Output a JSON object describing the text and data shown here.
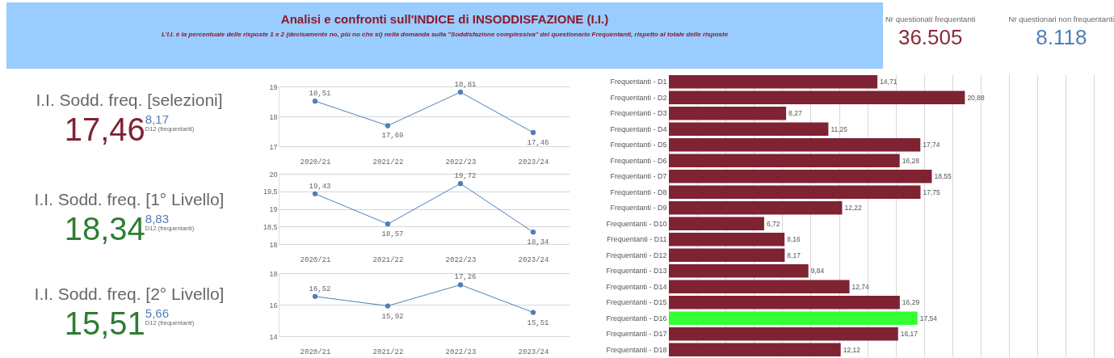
{
  "chart_data": [
    {
      "type": "other",
      "title": "Analisi e confronti sull'INDICE di INSODDISFAZIONE (I.I.)",
      "subtitle": "L'I.I. è la percentuale delle risposte 1 e 2 (decisamente no, più no che si) nella domanda sulla \"Soddisfazione complessiva\" del questionario Frequentanti, rispetto al totale delle risposte"
    },
    {
      "type": "other",
      "annotations": [
        "Nr questionati frequentanti",
        "36.505",
        "Nr questionari non frequentanti",
        "8.118"
      ],
      "colors": [
        "#8b2a3a",
        "#4e7fb8"
      ]
    },
    {
      "type": "other",
      "title": "I.I. Sodd. freq. [selezioni]",
      "annotations": [
        "17,46",
        "8,17",
        "D12 (frequentanti)"
      ],
      "colors": [
        "#7f2232",
        "#4e7fb8"
      ]
    },
    {
      "type": "other",
      "title": "I.I. Sodd. freq. [1° Livello]",
      "annotations": [
        "18,34",
        "8,83",
        "D12 (frequentanti)"
      ],
      "colors": [
        "#2e7d32",
        "#4e7fb8"
      ]
    },
    {
      "type": "other",
      "title": "I.I. Sodd. freq. [2° Livello]",
      "annotations": [
        "15,51",
        "5,66",
        "D12 (frequentanti)"
      ],
      "colors": [
        "#2e7d32",
        "#4e7fb8"
      ]
    },
    {
      "type": "line",
      "categories": [
        "2020/21",
        "2021/22",
        "2022/23",
        "2023/24"
      ],
      "series": [
        {
          "color": "#4e7fb8",
          "values": [
            18.51,
            17.69,
            18.81,
            17.46
          ],
          "value_labels": [
            "18,51",
            "17,69",
            "18,81",
            "17,46"
          ]
        }
      ],
      "ylim": [
        17,
        19
      ],
      "yticks": [
        17,
        18,
        19
      ],
      "grid": "y",
      "marker": "circle"
    },
    {
      "type": "line",
      "categories": [
        "2020/21",
        "2021/22",
        "2022/23",
        "2023/24"
      ],
      "series": [
        {
          "color": "#4e7fb8",
          "values": [
            19.43,
            18.57,
            19.72,
            18.34
          ],
          "value_labels": [
            "19,43",
            "18,57",
            "19,72",
            "18,34"
          ]
        }
      ],
      "ylim": [
        18,
        20
      ],
      "yticks": [
        18,
        {
          "value": 18.5,
          "label": "18,5"
        },
        19,
        {
          "value": 19.5,
          "label": "19,5"
        },
        20
      ],
      "grid": "y",
      "marker": "circle"
    },
    {
      "type": "line",
      "categories": [
        "2020/21",
        "2021/22",
        "2022/23",
        "2023/24"
      ],
      "series": [
        {
          "color": "#4e7fb8",
          "values": [
            16.52,
            15.92,
            17.26,
            15.51
          ],
          "value_labels": [
            "16,52",
            "15,92",
            "17,26",
            "15,51"
          ]
        }
      ],
      "ylim": [
        14,
        18
      ],
      "yticks": [
        14,
        16,
        18
      ],
      "grid": "y",
      "marker": "circle"
    },
    {
      "type": "bar",
      "orientation": "horizontal",
      "categories": [
        "Frequentanti - D1",
        "Frequentanti - D2",
        "Frequentanti - D3",
        "Frequentanti - D4",
        "Frequentanti - D5",
        "Frequentanti - D6",
        "Frequentanti - D7",
        "Frequentanti - D8",
        "Frequentanti - D9",
        "Frequentanti - D10",
        "Frequentanti - D11",
        "Frequentanti - D12",
        "Frequentanti - D13",
        "Frequentanti - D14",
        "Frequentanti - D15",
        "Frequentanti - D16",
        "Frequentanti - D17",
        "Frequentanti - D18"
      ],
      "values": [
        14.71,
        20.88,
        8.27,
        11.25,
        17.74,
        16.28,
        18.55,
        17.75,
        12.22,
        6.72,
        8.16,
        8.17,
        9.84,
        12.74,
        16.29,
        17.54,
        16.17,
        12.12
      ],
      "value_labels": [
        "14,71",
        "20,88",
        "8,27",
        "11,25",
        "17,74",
        "16,28",
        "18,55",
        "17,75",
        "12,22",
        "6,72",
        "8,16",
        "8,17",
        "9,84",
        "12,74",
        "16,29",
        "17,54",
        "16,17",
        "12,12"
      ],
      "colors": [
        "#7f2232",
        "#7f2232",
        "#7f2232",
        "#7f2232",
        "#7f2232",
        "#7f2232",
        "#7f2232",
        "#7f2232",
        "#7f2232",
        "#7f2232",
        "#7f2232",
        "#7f2232",
        "#7f2232",
        "#7f2232",
        "#7f2232",
        "#33ff33",
        "#7f2232",
        "#7f2232"
      ],
      "xlim": [
        0,
        31.4
      ],
      "grid": "x",
      "tick_labels": "y"
    }
  ]
}
